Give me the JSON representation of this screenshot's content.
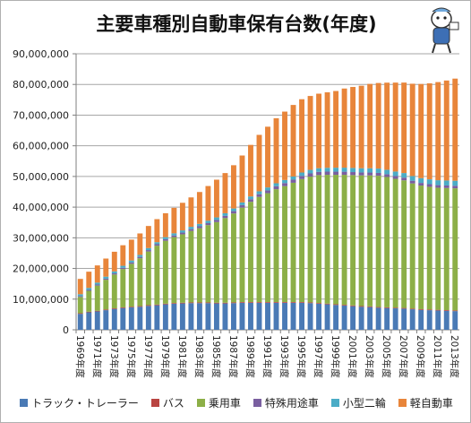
{
  "chart_data": {
    "type": "bar",
    "stacked": true,
    "title": "主要車種別自動車保有台数(年度)",
    "xlabel": "",
    "ylabel": "",
    "ylim": [
      0,
      90000000
    ],
    "yticks": [
      "0",
      "10,000,000",
      "20,000,000",
      "30,000,000",
      "40,000,000",
      "50,000,000",
      "60,000,000",
      "70,000,000",
      "80,000,000",
      "90,000,000"
    ],
    "grid": true,
    "legend_position": "bottom",
    "categories": [
      "1969年度",
      "1970年度",
      "1971年度",
      "1972年度",
      "1973年度",
      "1974年度",
      "1975年度",
      "1976年度",
      "1977年度",
      "1978年度",
      "1979年度",
      "1980年度",
      "1981年度",
      "1982年度",
      "1983年度",
      "1984年度",
      "1985年度",
      "1986年度",
      "1987年度",
      "1988年度",
      "1989年度",
      "1990年度",
      "1991年度",
      "1992年度",
      "1993年度",
      "1994年度",
      "1995年度",
      "1996年度",
      "1997年度",
      "1998年度",
      "1999年度",
      "2000年度",
      "2001年度",
      "2002年度",
      "2003年度",
      "2004年度",
      "2005年度",
      "2006年度",
      "2007年度",
      "2008年度",
      "2009年度",
      "2010年度",
      "2011年度",
      "2012年度",
      "2013年度"
    ],
    "xtick_labels": [
      "1969年度",
      "1971年度",
      "1973年度",
      "1975年度",
      "1977年度",
      "1979年度",
      "1981年度",
      "1983年度",
      "1985年度",
      "1987年度",
      "1989年度",
      "1991年度",
      "1993年度",
      "1995年度",
      "1997年度",
      "1999年度",
      "2001年度",
      "2003年度",
      "2005年度",
      "2007年度",
      "2009年度",
      "2011年度",
      "2013年度"
    ],
    "series": [
      {
        "name": "トラック・トレーラー",
        "color": "#4a7ab5",
        "values": [
          5200000,
          5700000,
          6000000,
          6400000,
          6800000,
          7100000,
          7300000,
          7500000,
          7800000,
          8000000,
          8300000,
          8500000,
          8600000,
          8700000,
          8700000,
          8700000,
          8600000,
          8600000,
          8700000,
          8800000,
          8800000,
          8800000,
          8800000,
          8800000,
          8800000,
          8800000,
          8800000,
          8700000,
          8500000,
          8300000,
          8100000,
          7900000,
          7700000,
          7500000,
          7400000,
          7200000,
          7100000,
          7000000,
          6900000,
          6700000,
          6500000,
          6400000,
          6300000,
          6200000,
          6100000
        ]
      },
      {
        "name": "バス",
        "color": "#b94441",
        "values": [
          200000,
          210000,
          210000,
          220000,
          220000,
          220000,
          230000,
          230000,
          230000,
          230000,
          230000,
          230000,
          230000,
          230000,
          230000,
          230000,
          230000,
          230000,
          230000,
          240000,
          240000,
          240000,
          240000,
          240000,
          240000,
          240000,
          240000,
          240000,
          240000,
          240000,
          240000,
          240000,
          240000,
          240000,
          230000,
          230000,
          230000,
          230000,
          230000,
          230000,
          230000,
          230000,
          230000,
          230000,
          230000
        ]
      },
      {
        "name": "乗用車",
        "color": "#8caf47",
        "values": [
          5300000,
          6800000,
          8200000,
          9700000,
          11000000,
          12500000,
          14000000,
          15600000,
          17500000,
          19200000,
          20500000,
          21500000,
          22300000,
          23300000,
          24200000,
          25200000,
          26300000,
          27600000,
          29000000,
          30800000,
          32700000,
          34300000,
          35500000,
          36800000,
          37800000,
          38900000,
          40100000,
          41000000,
          41700000,
          42000000,
          42200000,
          42400000,
          42500000,
          42600000,
          42700000,
          42800000,
          42500000,
          42000000,
          41600000,
          40800000,
          40300000,
          40000000,
          39800000,
          39800000,
          39800000
        ]
      },
      {
        "name": "特殊用途車",
        "color": "#7a5fa0",
        "values": [
          300000,
          320000,
          340000,
          360000,
          380000,
          400000,
          420000,
          440000,
          460000,
          480000,
          500000,
          530000,
          560000,
          590000,
          620000,
          650000,
          690000,
          720000,
          760000,
          800000,
          840000,
          880000,
          920000,
          960000,
          1000000,
          1020000,
          1040000,
          1050000,
          1050000,
          1040000,
          1020000,
          1000000,
          980000,
          960000,
          940000,
          920000,
          900000,
          890000,
          880000,
          870000,
          860000,
          850000,
          840000,
          830000,
          830000
        ]
      },
      {
        "name": "小型二輪",
        "color": "#4bacc6",
        "values": [
          600000,
          620000,
          640000,
          650000,
          650000,
          650000,
          650000,
          650000,
          660000,
          670000,
          680000,
          700000,
          720000,
          750000,
          780000,
          800000,
          830000,
          850000,
          870000,
          890000,
          910000,
          940000,
          960000,
          980000,
          1000000,
          1050000,
          1100000,
          1150000,
          1200000,
          1250000,
          1300000,
          1330000,
          1360000,
          1380000,
          1400000,
          1420000,
          1450000,
          1480000,
          1500000,
          1530000,
          1550000,
          1580000,
          1600000,
          1620000,
          1640000
        ]
      },
      {
        "name": "軽自動車",
        "color": "#e8853a",
        "values": [
          5000000,
          5300000,
          5600000,
          5900000,
          6400000,
          6700000,
          6800000,
          7000000,
          7200000,
          7500000,
          7800000,
          8300000,
          9000000,
          9600000,
          10400000,
          11300000,
          12300000,
          13100000,
          14100000,
          15300000,
          16800000,
          18400000,
          19800000,
          21200000,
          22300000,
          23300000,
          23900000,
          24100000,
          24300000,
          24600000,
          25000000,
          25800000,
          26400000,
          26900000,
          27500000,
          27900000,
          28400000,
          29000000,
          29500000,
          30100000,
          30700000,
          31300000,
          32000000,
          32600000,
          33300000
        ]
      }
    ]
  }
}
